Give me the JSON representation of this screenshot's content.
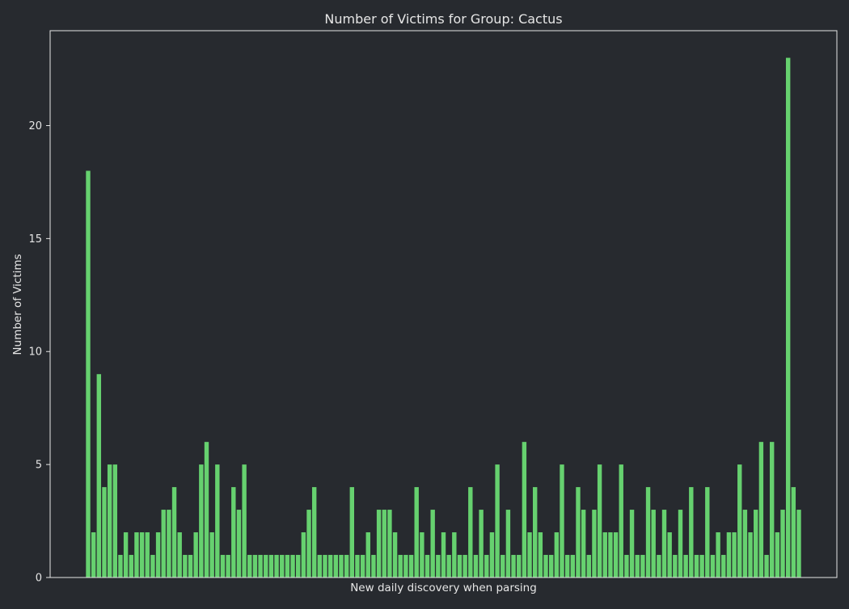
{
  "chart_data": {
    "type": "bar",
    "title": "Number of Victims for Group: Cactus",
    "xlabel": "New daily discovery when parsing",
    "ylabel": "Number of Victims",
    "ylim": [
      0,
      24.2
    ],
    "yticks": [
      0,
      5,
      10,
      15,
      20
    ],
    "xticks_visible": false,
    "grid": false,
    "legend": "none",
    "colors": {
      "background": "#272a2f",
      "bar": "#66d16f",
      "axes": "#e6e6e6",
      "text": "#e6e6e6"
    },
    "values": [
      18,
      2,
      9,
      4,
      5,
      5,
      1,
      2,
      1,
      2,
      2,
      2,
      1,
      2,
      3,
      3,
      4,
      2,
      1,
      1,
      2,
      5,
      6,
      2,
      5,
      1,
      1,
      4,
      3,
      5,
      1,
      1,
      1,
      1,
      1,
      1,
      1,
      1,
      1,
      1,
      2,
      3,
      4,
      1,
      1,
      1,
      1,
      1,
      1,
      4,
      1,
      1,
      2,
      1,
      3,
      3,
      3,
      2,
      1,
      1,
      1,
      4,
      2,
      1,
      3,
      1,
      2,
      1,
      2,
      1,
      1,
      4,
      1,
      3,
      1,
      2,
      5,
      1,
      3,
      1,
      1,
      6,
      2,
      4,
      2,
      1,
      1,
      2,
      5,
      1,
      1,
      4,
      3,
      1,
      3,
      5,
      2,
      2,
      2,
      5,
      1,
      3,
      1,
      1,
      4,
      3,
      1,
      3,
      2,
      1,
      3,
      1,
      4,
      1,
      1,
      4,
      1,
      2,
      1,
      2,
      2,
      5,
      3,
      2,
      3,
      6,
      1,
      6,
      2,
      3,
      23,
      4,
      3
    ]
  }
}
